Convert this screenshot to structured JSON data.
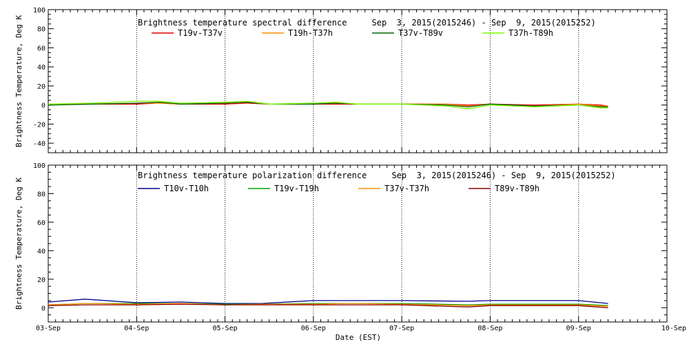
{
  "figure": {
    "xlabel": "Date (EST)",
    "xticks": [
      "03-Sep",
      "04-Sep",
      "05-Sep",
      "06-Sep",
      "07-Sep",
      "08-Sep",
      "09-Sep",
      "10-Sep"
    ],
    "xlim_days": [
      0,
      7
    ],
    "panels": [
      {
        "title": "Brightness temperature spectral difference     Sep  3, 2015(2015246) - Sep  9, 2015(2015252)",
        "ylabel": "Brightness Temperature, Deg K",
        "ylim": [
          -50,
          100
        ],
        "yticks": [
          -40,
          -20,
          0,
          20,
          40,
          60,
          80,
          100
        ],
        "legend": [
          {
            "label": "T19v-T37v",
            "color": "#e00000"
          },
          {
            "label": "T19h-T37h",
            "color": "#ff8c00"
          },
          {
            "label": "T37v-T89v",
            "color": "#006400"
          },
          {
            "label": "T37h-T89h",
            "color": "#7cfc00"
          }
        ]
      },
      {
        "title": "Brightness temperature polarization difference     Sep  3, 2015(2015246) - Sep  9, 2015(2015252)",
        "ylabel": "Brightness Temperature, Deg K",
        "ylim": [
          -10,
          100
        ],
        "yticks": [
          0,
          20,
          40,
          60,
          80,
          100
        ],
        "legend": [
          {
            "label": "T10v-T10h",
            "color": "#00008b"
          },
          {
            "label": "T19v-T19h",
            "color": "#00a000"
          },
          {
            "label": "T37v-T37h",
            "color": "#ff8c00"
          },
          {
            "label": "T89v-T89h",
            "color": "#8b0000"
          }
        ]
      }
    ]
  },
  "chart_data": [
    {
      "type": "line",
      "title": "Brightness temperature spectral difference     Sep  3, 2015(2015246) - Sep  9, 2015(2015252)",
      "xlabel": "Date (EST)",
      "ylabel": "Brightness Temperature, Deg K",
      "xlim": [
        "2015-09-03",
        "2015-09-10"
      ],
      "ylim": [
        -50,
        100
      ],
      "x": [
        "2015-09-03 00:00",
        "2015-09-03 12:00",
        "2015-09-04 00:00",
        "2015-09-04 06:00",
        "2015-09-04 12:00",
        "2015-09-05 00:00",
        "2015-09-05 06:00",
        "2015-09-05 12:00",
        "2015-09-06 00:00",
        "2015-09-06 06:00",
        "2015-09-06 12:00",
        "2015-09-07 00:00",
        "2015-09-07 12:00",
        "2015-09-07 18:00",
        "2015-09-08 00:00",
        "2015-09-08 12:00",
        "2015-09-09 00:00",
        "2015-09-09 06:00",
        "2015-09-09 08:00"
      ],
      "series": [
        {
          "name": "T19v-T37v",
          "color": "#e00000",
          "values": [
            1,
            1,
            1,
            2,
            1,
            1,
            2,
            1,
            1,
            1,
            1,
            1,
            1,
            0,
            1,
            0,
            1,
            0,
            -1
          ]
        },
        {
          "name": "T19h-T37h",
          "color": "#ff8c00",
          "values": [
            1,
            1,
            2,
            2,
            1,
            2,
            3,
            1,
            1,
            2,
            1,
            1,
            1,
            -1,
            1,
            -1,
            1,
            -1,
            -1
          ]
        },
        {
          "name": "T37v-T89v",
          "color": "#006400",
          "values": [
            0,
            1,
            2,
            3,
            1,
            2,
            3,
            1,
            1,
            2,
            1,
            1,
            0,
            -2,
            1,
            -1,
            0,
            -2,
            -2
          ]
        },
        {
          "name": "T37h-T89h",
          "color": "#7cfc00",
          "values": [
            1,
            2,
            4,
            4,
            2,
            3,
            4,
            1,
            2,
            3,
            1,
            1,
            -1,
            -4,
            0,
            -2,
            0,
            -3,
            -3
          ]
        }
      ]
    },
    {
      "type": "line",
      "title": "Brightness temperature polarization difference     Sep  3, 2015(2015246) - Sep  9, 2015(2015252)",
      "xlabel": "Date (EST)",
      "ylabel": "Brightness Temperature, Deg K",
      "xlim": [
        "2015-09-03",
        "2015-09-10"
      ],
      "ylim": [
        -10,
        100
      ],
      "x": [
        "2015-09-03 00:00",
        "2015-09-03 10:00",
        "2015-09-04 00:00",
        "2015-09-04 12:00",
        "2015-09-05 00:00",
        "2015-09-05 10:00",
        "2015-09-06 00:00",
        "2015-09-06 10:00",
        "2015-09-07 00:00",
        "2015-09-07 18:00",
        "2015-09-08 00:00",
        "2015-09-08 12:00",
        "2015-09-09 00:00",
        "2015-09-09 08:00"
      ],
      "series": [
        {
          "name": "T10v-T10h",
          "color": "#00008b",
          "values": [
            4,
            6,
            3.5,
            4,
            3,
            3,
            5,
            5,
            5,
            4.5,
            5,
            5,
            5,
            3
          ]
        },
        {
          "name": "T19v-T19h",
          "color": "#00a000",
          "values": [
            2,
            3,
            3,
            3,
            2.5,
            2.5,
            3,
            3,
            3,
            2,
            2.5,
            2.5,
            2.5,
            1.5
          ]
        },
        {
          "name": "T37v-T37h",
          "color": "#ff8c00",
          "values": [
            2,
            3,
            2.5,
            3,
            2,
            2.5,
            2.5,
            3,
            2.5,
            1.5,
            2,
            2,
            2,
            1
          ]
        },
        {
          "name": "T89v-T89h",
          "color": "#8b0000",
          "values": [
            1.5,
            2,
            2,
            2.5,
            2,
            2,
            2,
            2,
            2,
            0.5,
            1.5,
            1.5,
            1.5,
            0
          ]
        }
      ]
    }
  ]
}
